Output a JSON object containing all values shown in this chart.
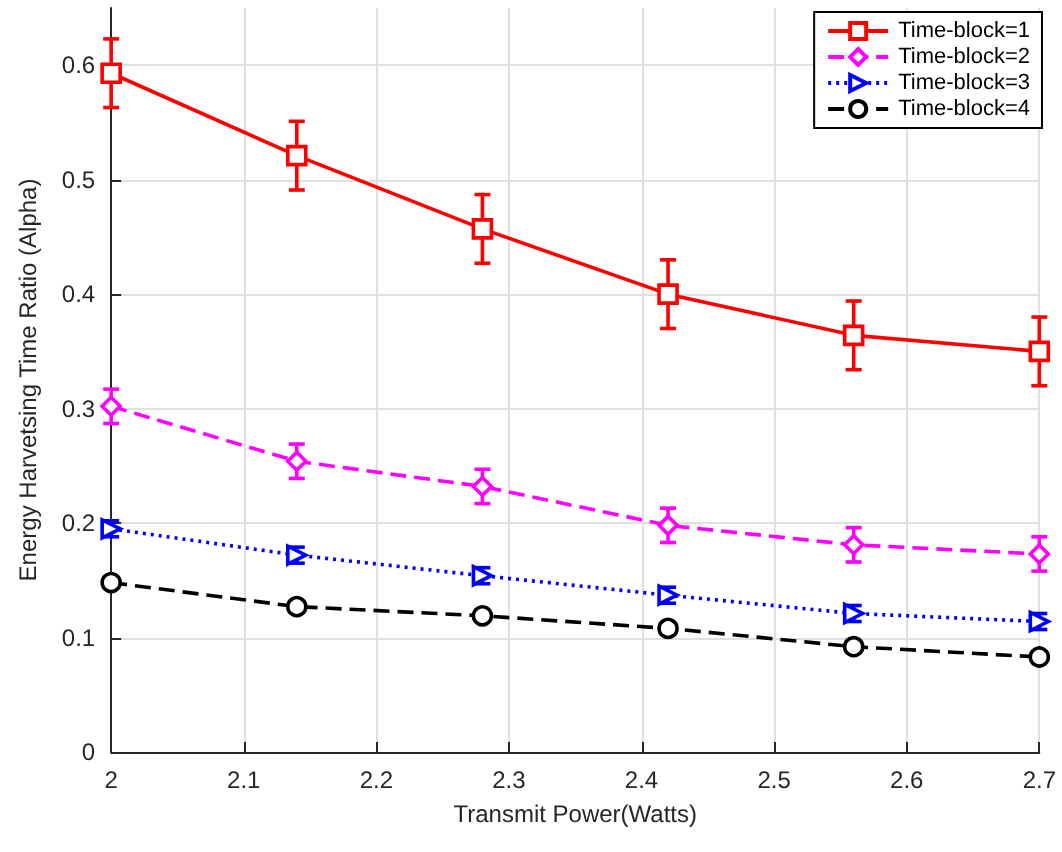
{
  "chart_data": {
    "type": "line",
    "xlabel": "Transmit Power(Watts)",
    "ylabel": "Energy Harvetsing Time Ratio (Alpha)",
    "x": [
      2,
      2.14,
      2.28,
      2.42,
      2.56,
      2.7
    ],
    "series": [
      {
        "name": "Time-block=1",
        "color": "#ff0000",
        "marker": "square",
        "line_style": "solid",
        "values": [
          0.593,
          0.521,
          0.457,
          0.4,
          0.364,
          0.35
        ],
        "errors": [
          0.03,
          0.03,
          0.03,
          0.03,
          0.03,
          0.03
        ]
      },
      {
        "name": "Time-block=2",
        "color": "#ff00ff",
        "marker": "diamond",
        "line_style": "dashed",
        "values": [
          0.302,
          0.254,
          0.232,
          0.198,
          0.181,
          0.173
        ],
        "errors": [
          0.015,
          0.015,
          0.015,
          0.015,
          0.015,
          0.015
        ]
      },
      {
        "name": "Time-block=3",
        "color": "#0000ff",
        "marker": "triangle",
        "line_style": "dotted",
        "values": [
          0.195,
          0.172,
          0.154,
          0.137,
          0.121,
          0.114
        ],
        "errors": [
          0.007,
          0.007,
          0.007,
          0.007,
          0.007,
          0.007
        ]
      },
      {
        "name": "Time-block=4",
        "color": "#000000",
        "marker": "circle",
        "line_style": "dashed",
        "values": [
          0.148,
          0.127,
          0.119,
          0.108,
          0.092,
          0.083
        ],
        "errors": [
          0.004,
          0.004,
          0.004,
          0.004,
          0.004,
          0.004
        ]
      }
    ],
    "xlim": [
      2,
      2.7
    ],
    "xticks": [
      2,
      2.1,
      2.2,
      2.3,
      2.4,
      2.5,
      2.6,
      2.7
    ],
    "ylim": [
      0,
      0.65
    ],
    "yticks": [
      0,
      0.1,
      0.2,
      0.3,
      0.4,
      0.5,
      0.6
    ],
    "grid": true,
    "legend": "top right"
  }
}
